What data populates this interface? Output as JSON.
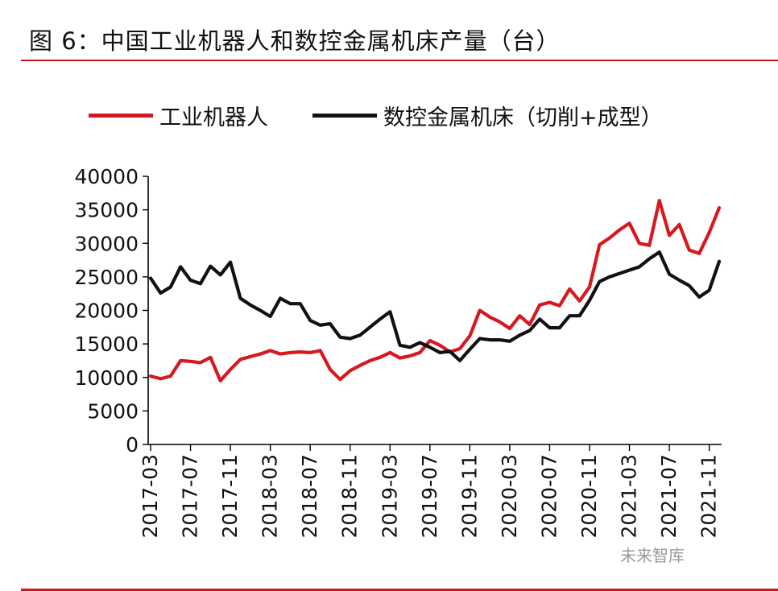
{
  "figure": {
    "title": "图 6：中国工业机器人和数控金属机床产量（台）",
    "watermark": "未来智库"
  },
  "colors": {
    "accent": "#c8171e",
    "robot": "#d7191f",
    "machine": "#111111"
  },
  "chart_data": {
    "type": "line",
    "title": "",
    "xlabel": "",
    "ylabel": "",
    "ylim": [
      0,
      40000
    ],
    "yticks": [
      0,
      5000,
      10000,
      15000,
      20000,
      25000,
      30000,
      35000,
      40000
    ],
    "grid": false,
    "legend_position": "top",
    "x_tick_labels": [
      "2017-03",
      "2017-07",
      "2017-11",
      "2018-03",
      "2018-07",
      "2018-11",
      "2019-03",
      "2019-07",
      "2019-11",
      "2020-03",
      "2020-07",
      "2020-11",
      "2021-03",
      "2021-07",
      "2021-11"
    ],
    "x": [
      "2017-03",
      "2017-04",
      "2017-05",
      "2017-06",
      "2017-07",
      "2017-08",
      "2017-09",
      "2017-10",
      "2017-11",
      "2017-12",
      "2018-01",
      "2018-02",
      "2018-03",
      "2018-04",
      "2018-05",
      "2018-06",
      "2018-07",
      "2018-08",
      "2018-09",
      "2018-10",
      "2018-11",
      "2018-12",
      "2019-01",
      "2019-02",
      "2019-03",
      "2019-04",
      "2019-05",
      "2019-06",
      "2019-07",
      "2019-08",
      "2019-09",
      "2019-10",
      "2019-11",
      "2019-12",
      "2020-01",
      "2020-02",
      "2020-03",
      "2020-04",
      "2020-05",
      "2020-06",
      "2020-07",
      "2020-08",
      "2020-09",
      "2020-10",
      "2020-11",
      "2020-12",
      "2021-01",
      "2021-02",
      "2021-03",
      "2021-04",
      "2021-05",
      "2021-06",
      "2021-07",
      "2021-08",
      "2021-09",
      "2021-10",
      "2021-11",
      "2021-12"
    ],
    "series": [
      {
        "name": "工业机器人",
        "color": "#d7191f",
        "values": [
          10200,
          9800,
          10200,
          12500,
          12400,
          12200,
          13000,
          9500,
          11200,
          12700,
          13100,
          13500,
          14000,
          13500,
          13700,
          13800,
          13700,
          14000,
          11200,
          9700,
          11000,
          11800,
          12500,
          13000,
          13700,
          12900,
          13200,
          13700,
          15500,
          14800,
          13800,
          14300,
          16200,
          20000,
          19000,
          18300,
          17300,
          19200,
          17900,
          20800,
          21200,
          20700,
          23200,
          21400,
          23500,
          29800,
          30800,
          32000,
          33000,
          30000,
          29700,
          36400,
          31200,
          32800,
          29000,
          28500,
          31600,
          35300
        ]
      },
      {
        "name": "数控金属机床（切削+成型）",
        "color": "#111111",
        "values": [
          24800,
          22600,
          23500,
          26500,
          24500,
          24000,
          26600,
          25300,
          27200,
          21800,
          20800,
          20000,
          19100,
          21800,
          21000,
          21000,
          18500,
          17800,
          18000,
          16000,
          15800,
          16300,
          17500,
          18700,
          19800,
          14800,
          14500,
          15200,
          14500,
          13700,
          13900,
          12500,
          14200,
          15800,
          15600,
          15600,
          15400,
          16300,
          17000,
          18700,
          17400,
          17400,
          19200,
          19200,
          21500,
          24300,
          25000,
          25500,
          26000,
          26500,
          27700,
          28700,
          25400,
          24500,
          23700,
          22000,
          23000,
          27300
        ]
      }
    ]
  }
}
